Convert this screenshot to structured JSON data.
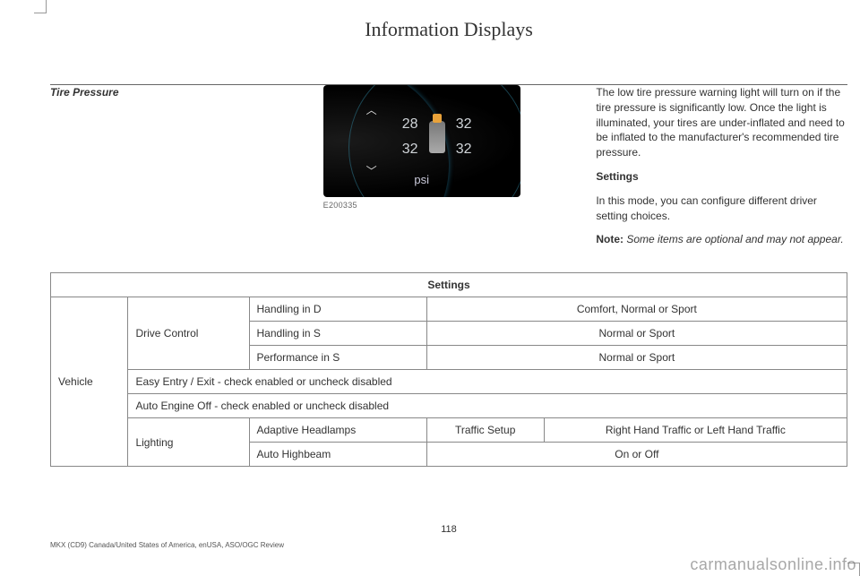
{
  "header": {
    "title": "Information Displays"
  },
  "left": {
    "heading": "Tire Pressure"
  },
  "figure": {
    "caption": "E200335",
    "tpms": {
      "lf": "28",
      "rf": "32",
      "lr": "32",
      "rr": "32",
      "unit": "psi"
    }
  },
  "right": {
    "para1": "The low tire pressure warning light will turn on if the tire pressure is significantly low. Once the light is illuminated, your tires are under-inflated and need to be inflated to the manufacturer's recommended tire pressure.",
    "settings_heading": "Settings",
    "para2": "In this mode, you can configure different driver setting choices.",
    "note_label": "Note:",
    "note_text": " Some items are optional and may not appear."
  },
  "table": {
    "header": "Settings",
    "rows": {
      "vehicle": "Vehicle",
      "drive_control": "Drive Control",
      "handling_d": "Handling in D",
      "handling_d_opts": "Comfort, Normal or Sport",
      "handling_s": "Handling in S",
      "handling_s_opts": "Normal or Sport",
      "perf_s": "Performance in S",
      "perf_s_opts": "Normal or Sport",
      "easy_entry": "Easy Entry / Exit - check enabled or uncheck disabled",
      "auto_engine": "Auto Engine Off - check enabled or uncheck disabled",
      "lighting": "Lighting",
      "adaptive": "Adaptive Headlamps",
      "traffic_setup": "Traffic Setup",
      "traffic_opts": "Right Hand Traffic or Left Hand Traffic",
      "auto_high": "Auto Highbeam",
      "auto_high_opts": "On or Off"
    }
  },
  "footer": {
    "page_num": "118",
    "line": "MKX (CD9) Canada/United States of America, enUSA, ASO/OGC Review"
  },
  "watermark": "carmanualsonline.info"
}
